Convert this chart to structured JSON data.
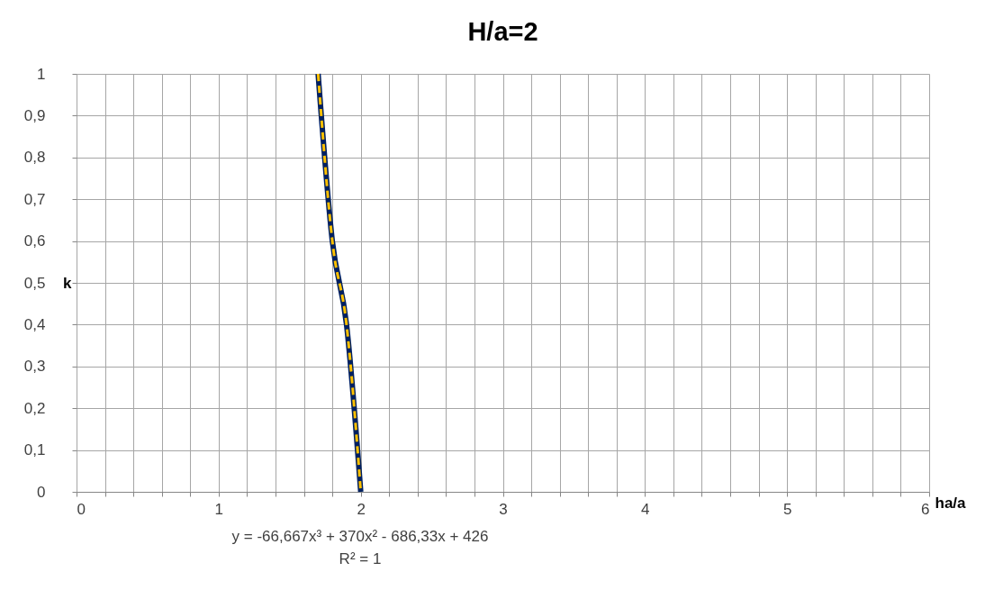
{
  "chart_data": {
    "type": "line",
    "title": "H/a=2",
    "xlabel": "ha/a",
    "ylabel": "k",
    "series": [
      {
        "color": "#002060",
        "x": [
          1.7,
          1.8,
          1.9,
          2
        ],
        "values": [
          1,
          0.6,
          0.4,
          0
        ],
        "line_style": "solid"
      },
      {
        "color": "#ffc000",
        "x": [
          1.7,
          1.8,
          1.9,
          2
        ],
        "values": [
          1,
          0.6,
          0.4,
          0
        ],
        "line_style": "dashed"
      }
    ],
    "xlim": [
      0,
      6
    ],
    "ylim": [
      0,
      1
    ],
    "xticks": [
      0,
      {
        "value": 0.2,
        "label": null
      },
      {
        "value": 0.4,
        "label": null
      },
      {
        "value": 0.6,
        "label": null
      },
      {
        "value": 0.8,
        "label": null
      },
      1,
      {
        "value": 1.2,
        "label": null
      },
      {
        "value": 1.4,
        "label": null
      },
      {
        "value": 1.6,
        "label": null
      },
      {
        "value": 1.8,
        "label": null
      },
      2,
      {
        "value": 2.2,
        "label": null
      },
      {
        "value": 2.4,
        "label": null
      },
      {
        "value": 2.6,
        "label": null
      },
      {
        "value": 2.8,
        "label": null
      },
      3,
      {
        "value": 3.2,
        "label": null
      },
      {
        "value": 3.4,
        "label": null
      },
      {
        "value": 3.6,
        "label": null
      },
      {
        "value": 3.8,
        "label": null
      },
      4,
      {
        "value": 4.2,
        "label": null
      },
      {
        "value": 4.4,
        "label": null
      },
      {
        "value": 4.6,
        "label": null
      },
      {
        "value": 4.8,
        "label": null
      },
      5,
      {
        "value": 5.2,
        "label": null
      },
      {
        "value": 5.4,
        "label": null
      },
      {
        "value": 5.6,
        "label": null
      },
      {
        "value": 5.8,
        "label": null
      },
      6
    ],
    "yticks": [
      0,
      {
        "value": 0.1,
        "label": "0,1"
      },
      {
        "value": 0.2,
        "label": "0,2"
      },
      {
        "value": 0.3,
        "label": "0,3"
      },
      {
        "value": 0.4,
        "label": "0,4"
      },
      {
        "value": 0.5,
        "label": "0,5"
      },
      {
        "value": 0.6,
        "label": "0,6"
      },
      {
        "value": 0.7,
        "label": "0,7"
      },
      {
        "value": 0.8,
        "label": "0,8"
      },
      {
        "value": 0.9,
        "label": "0,9"
      },
      1
    ],
    "grid": true,
    "marker": "none",
    "annotations": [
      "y = -66,667x³ + 370x² - 686,33x + 426",
      "R² = 1"
    ]
  }
}
